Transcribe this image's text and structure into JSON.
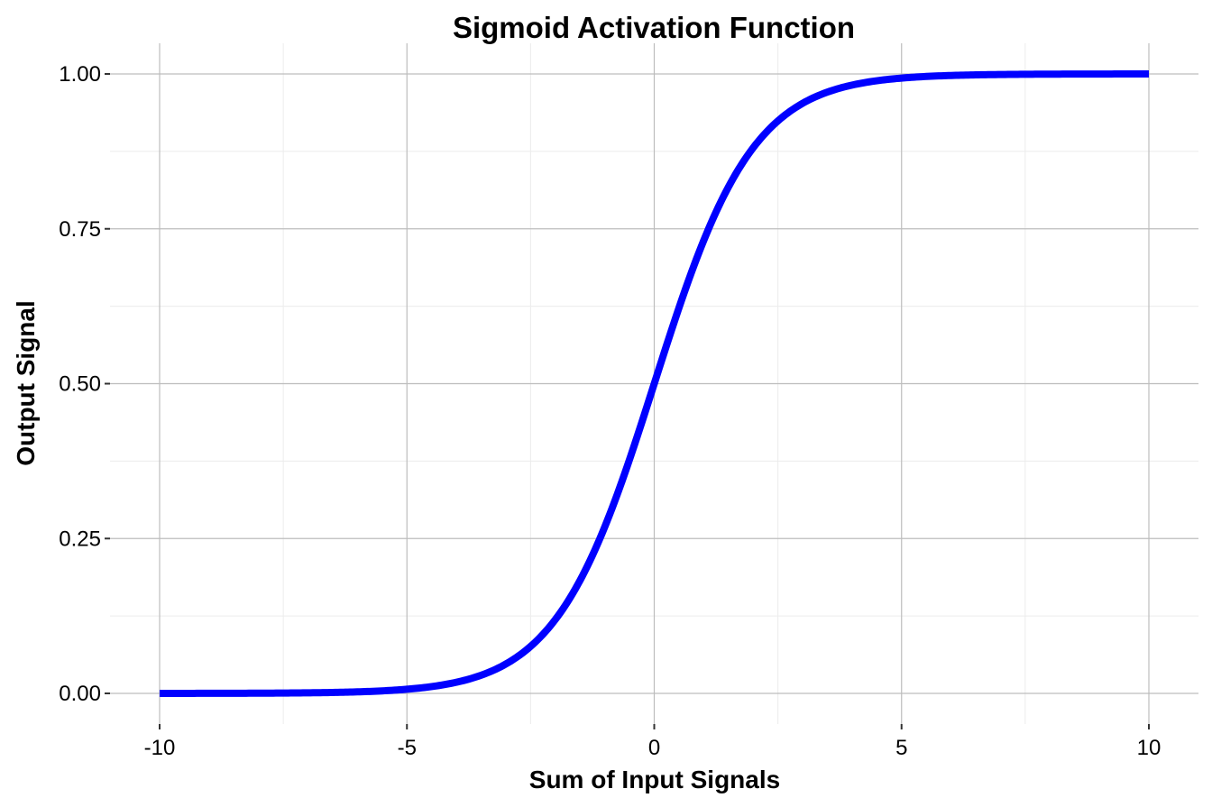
{
  "chart_data": {
    "type": "line",
    "title": "Sigmoid Activation Function",
    "xlabel": "Sum of Input Signals",
    "ylabel": "Output Signal",
    "xlim": [
      -10,
      10
    ],
    "ylim": [
      0,
      1
    ],
    "x_ticks": [
      "-10",
      "-5",
      "0",
      "5",
      "10"
    ],
    "y_ticks": [
      "0.00",
      "0.25",
      "0.50",
      "0.75",
      "1.00"
    ],
    "grid": true,
    "legend": null,
    "series": [
      {
        "name": "sigmoid",
        "color": "#0000ff",
        "function": "1/(1+exp(-x))",
        "x": [
          -10,
          -8,
          -6,
          -5,
          -4,
          -3,
          -2,
          -1,
          0,
          1,
          2,
          3,
          4,
          5,
          6,
          8,
          10
        ],
        "y": [
          0.0,
          0.0003,
          0.0025,
          0.0067,
          0.018,
          0.047,
          0.119,
          0.269,
          0.5,
          0.731,
          0.881,
          0.953,
          0.982,
          0.993,
          0.9975,
          0.9997,
          1.0
        ]
      }
    ]
  }
}
